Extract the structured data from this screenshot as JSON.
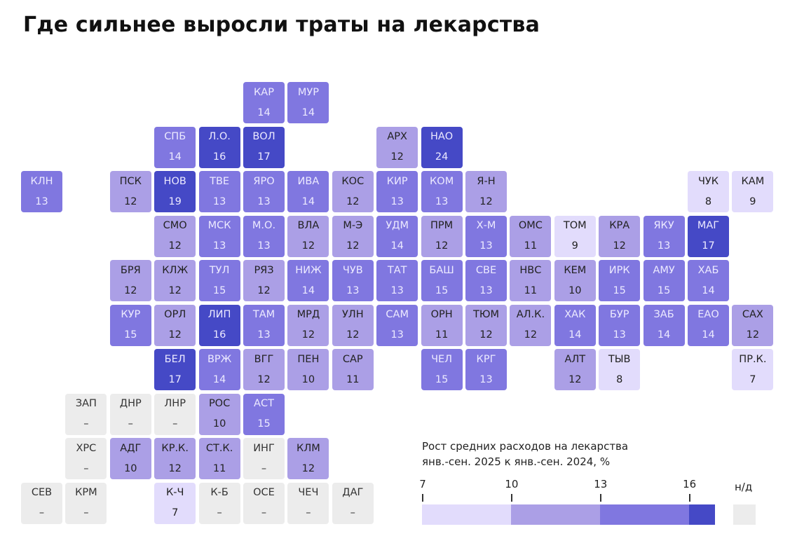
{
  "title": "Где сильнее выросли траты на лекарства",
  "chart_data": {
    "type": "heatmap",
    "subtype": "tile-grid-map",
    "title": "Где сильнее выросли траты на лекарства",
    "legend_title_line1": "Рост средних расходов на лекарства",
    "legend_title_line2": "янв.-сен. 2025 к янв.-сен. 2024, %",
    "bins": [
      {
        "from": 7,
        "to": 10,
        "color": "#e2dcfc",
        "text": "#222222"
      },
      {
        "from": 10,
        "to": 13,
        "color": "#ab9fe6",
        "text": "#222222"
      },
      {
        "from": 13,
        "to": 16,
        "color": "#8077e0",
        "text": "#eceaff"
      },
      {
        "from": 16,
        "to": 17,
        "color": "#4549c6",
        "text": "#eceaff"
      }
    ],
    "tick_labels": [
      "7",
      "10",
      "13",
      "16"
    ],
    "na_label": "н/д",
    "na_color": "#ececec",
    "na_value_label": "–",
    "regions": [
      {
        "code": "КАР",
        "value": 14,
        "row": 0,
        "col": 5
      },
      {
        "code": "МУР",
        "value": 14,
        "row": 0,
        "col": 6
      },
      {
        "code": "СПБ",
        "value": 14,
        "row": 1,
        "col": 3
      },
      {
        "code": "Л.О.",
        "value": 16,
        "row": 1,
        "col": 4
      },
      {
        "code": "ВОЛ",
        "value": 17,
        "row": 1,
        "col": 5
      },
      {
        "code": "АРХ",
        "value": 12,
        "row": 1,
        "col": 8
      },
      {
        "code": "НАО",
        "value": 24,
        "row": 1,
        "col": 9
      },
      {
        "code": "КЛН",
        "value": 13,
        "row": 2,
        "col": 0
      },
      {
        "code": "ПСК",
        "value": 12,
        "row": 2,
        "col": 2
      },
      {
        "code": "НОВ",
        "value": 19,
        "row": 2,
        "col": 3
      },
      {
        "code": "ТВЕ",
        "value": 13,
        "row": 2,
        "col": 4
      },
      {
        "code": "ЯРО",
        "value": 13,
        "row": 2,
        "col": 5
      },
      {
        "code": "ИВА",
        "value": 14,
        "row": 2,
        "col": 6
      },
      {
        "code": "КОС",
        "value": 12,
        "row": 2,
        "col": 7
      },
      {
        "code": "КИР",
        "value": 13,
        "row": 2,
        "col": 8
      },
      {
        "code": "КОМ",
        "value": 13,
        "row": 2,
        "col": 9
      },
      {
        "code": "Я-Н",
        "value": 12,
        "row": 2,
        "col": 10
      },
      {
        "code": "ЧУК",
        "value": 8,
        "row": 2,
        "col": 15
      },
      {
        "code": "КАМ",
        "value": 9,
        "row": 2,
        "col": 16
      },
      {
        "code": "СМО",
        "value": 12,
        "row": 3,
        "col": 3
      },
      {
        "code": "МСК",
        "value": 13,
        "row": 3,
        "col": 4
      },
      {
        "code": "М.О.",
        "value": 13,
        "row": 3,
        "col": 5
      },
      {
        "code": "ВЛА",
        "value": 12,
        "row": 3,
        "col": 6
      },
      {
        "code": "М-Э",
        "value": 12,
        "row": 3,
        "col": 7
      },
      {
        "code": "УДМ",
        "value": 14,
        "row": 3,
        "col": 8
      },
      {
        "code": "ПРМ",
        "value": 12,
        "row": 3,
        "col": 9
      },
      {
        "code": "Х-М",
        "value": 13,
        "row": 3,
        "col": 10
      },
      {
        "code": "ОМС",
        "value": 11,
        "row": 3,
        "col": 11
      },
      {
        "code": "ТОМ",
        "value": 9,
        "row": 3,
        "col": 12
      },
      {
        "code": "КРА",
        "value": 12,
        "row": 3,
        "col": 13
      },
      {
        "code": "ЯКУ",
        "value": 13,
        "row": 3,
        "col": 14
      },
      {
        "code": "МАГ",
        "value": 17,
        "row": 3,
        "col": 15
      },
      {
        "code": "БРЯ",
        "value": 12,
        "row": 4,
        "col": 2
      },
      {
        "code": "КЛЖ",
        "value": 12,
        "row": 4,
        "col": 3
      },
      {
        "code": "ТУЛ",
        "value": 15,
        "row": 4,
        "col": 4
      },
      {
        "code": "РЯЗ",
        "value": 12,
        "row": 4,
        "col": 5
      },
      {
        "code": "НИЖ",
        "value": 14,
        "row": 4,
        "col": 6
      },
      {
        "code": "ЧУВ",
        "value": 13,
        "row": 4,
        "col": 7
      },
      {
        "code": "ТАТ",
        "value": 13,
        "row": 4,
        "col": 8
      },
      {
        "code": "БАШ",
        "value": 15,
        "row": 4,
        "col": 9
      },
      {
        "code": "СВЕ",
        "value": 13,
        "row": 4,
        "col": 10
      },
      {
        "code": "НВС",
        "value": 11,
        "row": 4,
        "col": 11
      },
      {
        "code": "КЕМ",
        "value": 10,
        "row": 4,
        "col": 12
      },
      {
        "code": "ИРК",
        "value": 15,
        "row": 4,
        "col": 13
      },
      {
        "code": "АМУ",
        "value": 15,
        "row": 4,
        "col": 14
      },
      {
        "code": "ХАБ",
        "value": 14,
        "row": 4,
        "col": 15
      },
      {
        "code": "КУР",
        "value": 15,
        "row": 5,
        "col": 2
      },
      {
        "code": "ОРЛ",
        "value": 12,
        "row": 5,
        "col": 3
      },
      {
        "code": "ЛИП",
        "value": 16,
        "row": 5,
        "col": 4
      },
      {
        "code": "ТАМ",
        "value": 13,
        "row": 5,
        "col": 5
      },
      {
        "code": "МРД",
        "value": 12,
        "row": 5,
        "col": 6
      },
      {
        "code": "УЛН",
        "value": 12,
        "row": 5,
        "col": 7
      },
      {
        "code": "САМ",
        "value": 13,
        "row": 5,
        "col": 8
      },
      {
        "code": "ОРН",
        "value": 11,
        "row": 5,
        "col": 9
      },
      {
        "code": "ТЮМ",
        "value": 12,
        "row": 5,
        "col": 10
      },
      {
        "code": "АЛ.К.",
        "value": 12,
        "row": 5,
        "col": 11
      },
      {
        "code": "ХАК",
        "value": 14,
        "row": 5,
        "col": 12
      },
      {
        "code": "БУР",
        "value": 13,
        "row": 5,
        "col": 13
      },
      {
        "code": "ЗАБ",
        "value": 14,
        "row": 5,
        "col": 14
      },
      {
        "code": "ЕАО",
        "value": 14,
        "row": 5,
        "col": 15
      },
      {
        "code": "САХ",
        "value": 12,
        "row": 5,
        "col": 16
      },
      {
        "code": "БЕЛ",
        "value": 17,
        "row": 6,
        "col": 3
      },
      {
        "code": "ВРЖ",
        "value": 14,
        "row": 6,
        "col": 4
      },
      {
        "code": "ВГГ",
        "value": 12,
        "row": 6,
        "col": 5
      },
      {
        "code": "ПЕН",
        "value": 10,
        "row": 6,
        "col": 6
      },
      {
        "code": "САР",
        "value": 11,
        "row": 6,
        "col": 7
      },
      {
        "code": "ЧЕЛ",
        "value": 15,
        "row": 6,
        "col": 9
      },
      {
        "code": "КРГ",
        "value": 13,
        "row": 6,
        "col": 10
      },
      {
        "code": "АЛТ",
        "value": 12,
        "row": 6,
        "col": 12
      },
      {
        "code": "ТЫВ",
        "value": 8,
        "row": 6,
        "col": 13
      },
      {
        "code": "ПР.К.",
        "value": 7,
        "row": 6,
        "col": 16
      },
      {
        "code": "ЗАП",
        "value": null,
        "row": 7,
        "col": 1
      },
      {
        "code": "ДНР",
        "value": null,
        "row": 7,
        "col": 2
      },
      {
        "code": "ЛНР",
        "value": null,
        "row": 7,
        "col": 3
      },
      {
        "code": "РОС",
        "value": 10,
        "row": 7,
        "col": 4
      },
      {
        "code": "АСТ",
        "value": 15,
        "row": 7,
        "col": 5
      },
      {
        "code": "ХРС",
        "value": null,
        "row": 8,
        "col": 1
      },
      {
        "code": "АДГ",
        "value": 10,
        "row": 8,
        "col": 2
      },
      {
        "code": "КР.К.",
        "value": 12,
        "row": 8,
        "col": 3
      },
      {
        "code": "СТ.К.",
        "value": 11,
        "row": 8,
        "col": 4
      },
      {
        "code": "ИНГ",
        "value": null,
        "row": 8,
        "col": 5
      },
      {
        "code": "КЛМ",
        "value": 12,
        "row": 8,
        "col": 6
      },
      {
        "code": "СЕВ",
        "value": null,
        "row": 9,
        "col": 0
      },
      {
        "code": "КРМ",
        "value": null,
        "row": 9,
        "col": 1
      },
      {
        "code": "К-Ч",
        "value": 7,
        "row": 9,
        "col": 3
      },
      {
        "code": "К-Б",
        "value": null,
        "row": 9,
        "col": 4
      },
      {
        "code": "ОСЕ",
        "value": null,
        "row": 9,
        "col": 5
      },
      {
        "code": "ЧЕЧ",
        "value": null,
        "row": 9,
        "col": 6
      },
      {
        "code": "ДАГ",
        "value": null,
        "row": 9,
        "col": 7
      }
    ]
  }
}
